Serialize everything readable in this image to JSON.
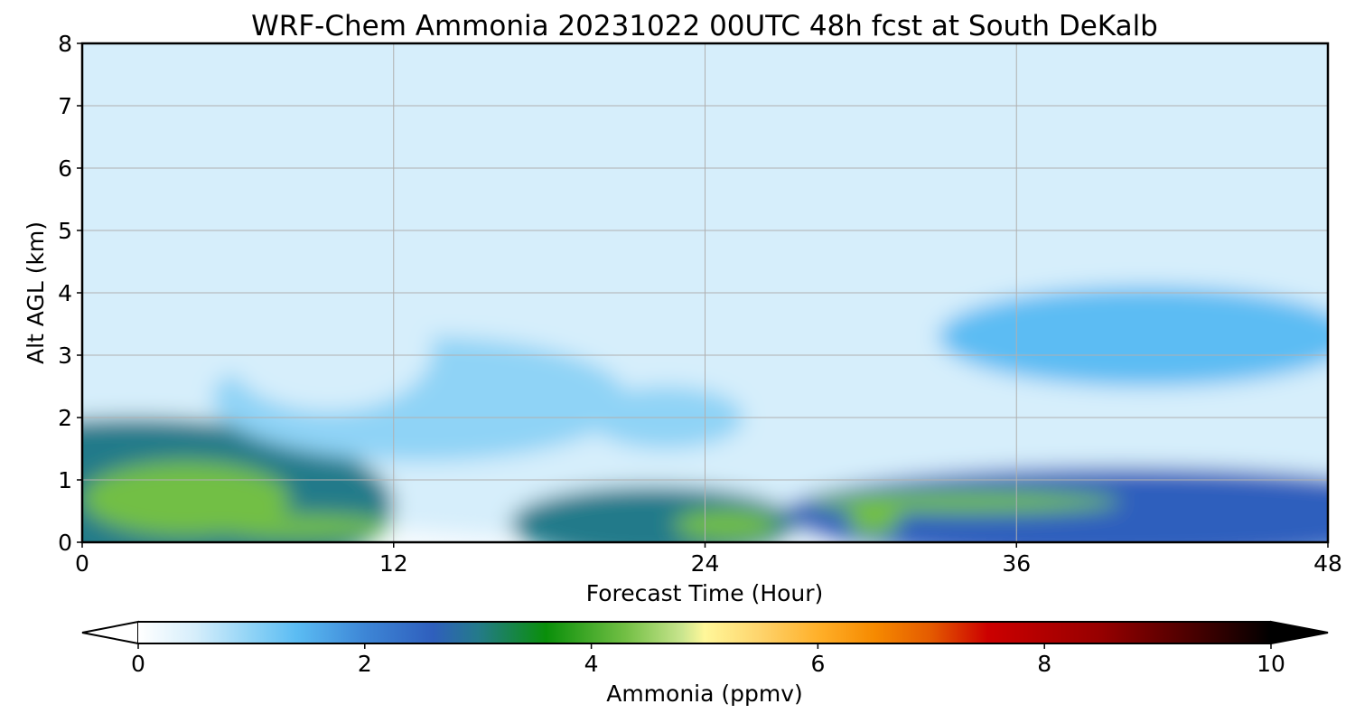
{
  "chart_data": {
    "type": "heatmap",
    "title": "WRF-Chem Ammonia  20231022 00UTC 48h fcst at South DeKalb",
    "xlabel": "Forecast Time (Hour)",
    "ylabel": "Alt AGL (km)",
    "xlim": [
      0,
      48
    ],
    "ylim": [
      0,
      8
    ],
    "x_ticks": [
      "0",
      "12",
      "24",
      "36",
      "48"
    ],
    "y_ticks": [
      "0",
      "1",
      "2",
      "3",
      "4",
      "5",
      "6",
      "7",
      "8"
    ],
    "grid": true,
    "colorbar": {
      "label": "Ammonia  (ppmv)",
      "min": 0,
      "max": 10,
      "extend": "both",
      "ticks": [
        "0",
        "2",
        "4",
        "6",
        "8",
        "10"
      ],
      "stops": [
        {
          "value": 0.0,
          "color": "#ffffff"
        },
        {
          "value": 0.5,
          "color": "#d6eefb"
        },
        {
          "value": 1.0,
          "color": "#8fd3f6"
        },
        {
          "value": 1.4,
          "color": "#5bbcf3"
        },
        {
          "value": 2.0,
          "color": "#3d86d6"
        },
        {
          "value": 2.6,
          "color": "#2f5fbd"
        },
        {
          "value": 3.0,
          "color": "#247a8a"
        },
        {
          "value": 3.6,
          "color": "#0a8f0a"
        },
        {
          "value": 4.3,
          "color": "#72bf44"
        },
        {
          "value": 4.8,
          "color": "#c9e58e"
        },
        {
          "value": 5.0,
          "color": "#fff79a"
        },
        {
          "value": 5.5,
          "color": "#fed36b"
        },
        {
          "value": 6.0,
          "color": "#ffb02a"
        },
        {
          "value": 6.5,
          "color": "#f68a00"
        },
        {
          "value": 7.0,
          "color": "#e45a00"
        },
        {
          "value": 7.5,
          "color": "#cc0000"
        },
        {
          "value": 8.5,
          "color": "#960000"
        },
        {
          "value": 9.3,
          "color": "#4a0000"
        },
        {
          "value": 10.0,
          "color": "#000000"
        }
      ]
    },
    "features": [
      {
        "name": "upper-background",
        "x": 24,
        "y": 5,
        "rx": 40,
        "ry": 5,
        "value": 0.08
      },
      {
        "name": "surface-band-west",
        "x": 2,
        "y": 0.6,
        "rx": 10,
        "ry": 1.4,
        "value": 2.7
      },
      {
        "name": "surface-band-east",
        "x": 40,
        "y": 0.45,
        "rx": 13,
        "ry": 0.75,
        "value": 2.3
      },
      {
        "name": "surface-band-mid",
        "x": 22,
        "y": 0.3,
        "rx": 5.5,
        "ry": 0.6,
        "value": 2.8
      },
      {
        "name": "plume-left-low",
        "x": 13,
        "y": 2.3,
        "rx": 8,
        "ry": 1.0,
        "value": 1.0
      },
      {
        "name": "plume-left-high",
        "x": 9.5,
        "y": 3.1,
        "rx": 4,
        "ry": 1.0,
        "value": 0.5
      },
      {
        "name": "plume-mid",
        "x": 22.5,
        "y": 2.0,
        "rx": 3,
        "ry": 0.5,
        "value": 0.8
      },
      {
        "name": "plume-right",
        "x": 41,
        "y": 3.3,
        "rx": 8,
        "ry": 0.8,
        "value": 1.2
      },
      {
        "name": "green-core-west",
        "x": 4,
        "y": 0.7,
        "rx": 4,
        "ry": 0.6,
        "value": 3.9
      },
      {
        "name": "green-tail-west",
        "x": 8.5,
        "y": 0.25,
        "rx": 3.5,
        "ry": 0.2,
        "value": 3.7
      },
      {
        "name": "green-core-24h",
        "x": 24.8,
        "y": 0.28,
        "rx": 2,
        "ry": 0.25,
        "value": 4.3
      },
      {
        "name": "green-band-33h",
        "x": 34,
        "y": 0.65,
        "rx": 6,
        "ry": 0.18,
        "value": 3.8
      },
      {
        "name": "green-spot-30h",
        "x": 30.5,
        "y": 0.35,
        "rx": 1,
        "ry": 0.25,
        "value": 4.2
      }
    ]
  }
}
